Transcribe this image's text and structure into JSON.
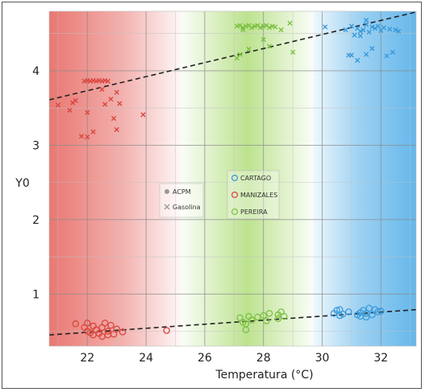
{
  "chart_data": {
    "type": "scatter",
    "xlabel": "Temperatura (°C)",
    "ylabel": "Y0",
    "xlim": [
      20.7,
      33.2
    ],
    "ylim": [
      0.3,
      4.8
    ],
    "x_ticks": [
      22,
      24,
      26,
      28,
      30,
      32
    ],
    "y_ticks": [
      1,
      2,
      3,
      4
    ],
    "grid": true,
    "colors": {
      "manizales": "#d9473f",
      "pereira": "#7cc142",
      "cartago": "#3a9ad9",
      "regression": "#222222",
      "neutral": "#999999"
    },
    "regions": [
      {
        "name": "MANIZALES",
        "x_from": 20.7,
        "x_to": 25.2,
        "color": "#e8706a"
      },
      {
        "name": "PEREIRA",
        "x_from": 25.2,
        "x_to": 29.7,
        "color": "#a6d96a"
      },
      {
        "name": "CARTAGO",
        "x_from": 29.7,
        "x_to": 33.2,
        "color": "#5cb3ea"
      }
    ],
    "legend_fuel": [
      {
        "label": "ACPM",
        "marker": "circle"
      },
      {
        "label": "Gasolina",
        "marker": "x"
      }
    ],
    "legend_city": [
      {
        "label": "CARTAGO",
        "color": "#3a9ad9"
      },
      {
        "label": "MANIZALES",
        "color": "#d9473f"
      },
      {
        "label": "PEREIRA",
        "color": "#7cc142"
      }
    ],
    "regression_lines": [
      {
        "name": "Gasolina",
        "x": [
          20.7,
          33.2
        ],
        "y": [
          3.61,
          4.79
        ]
      },
      {
        "name": "ACPM",
        "x": [
          20.7,
          33.2
        ],
        "y": [
          0.45,
          0.79
        ]
      }
    ],
    "series": [
      {
        "city": "MANIZALES",
        "fuel": "Gasolina",
        "marker": "x",
        "points": [
          [
            21.0,
            3.54
          ],
          [
            21.4,
            3.47
          ],
          [
            21.5,
            3.57
          ],
          [
            21.6,
            3.6
          ],
          [
            21.8,
            3.12
          ],
          [
            22.0,
            3.11
          ],
          [
            22.0,
            3.44
          ],
          [
            22.2,
            3.18
          ],
          [
            22.5,
            3.75
          ],
          [
            22.6,
            3.55
          ],
          [
            22.8,
            3.62
          ],
          [
            22.9,
            3.36
          ],
          [
            23.0,
            3.71
          ],
          [
            23.0,
            3.21
          ],
          [
            23.1,
            3.56
          ],
          [
            23.9,
            3.41
          ],
          [
            21.9,
            3.86
          ],
          [
            22.0,
            3.87
          ],
          [
            22.1,
            3.86
          ],
          [
            22.2,
            3.87
          ],
          [
            22.3,
            3.86
          ],
          [
            22.4,
            3.87
          ],
          [
            22.5,
            3.86
          ],
          [
            22.6,
            3.87
          ],
          [
            22.7,
            3.86
          ]
        ]
      },
      {
        "city": "MANIZALES",
        "fuel": "ACPM",
        "marker": "circle",
        "points": [
          [
            21.6,
            0.6
          ],
          [
            21.9,
            0.55
          ],
          [
            22.0,
            0.61
          ],
          [
            22.0,
            0.5
          ],
          [
            22.1,
            0.48
          ],
          [
            22.2,
            0.45
          ],
          [
            22.3,
            0.52
          ],
          [
            22.4,
            0.47
          ],
          [
            22.5,
            0.55
          ],
          [
            22.5,
            0.43
          ],
          [
            22.6,
            0.61
          ],
          [
            22.7,
            0.5
          ],
          [
            22.8,
            0.58
          ],
          [
            22.9,
            0.46
          ],
          [
            23.0,
            0.53
          ],
          [
            23.2,
            0.49
          ],
          [
            24.7,
            0.51
          ],
          [
            22.2,
            0.57
          ],
          [
            22.7,
            0.45
          ]
        ]
      },
      {
        "city": "PEREIRA",
        "fuel": "Gasolina",
        "marker": "x",
        "points": [
          [
            27.1,
            4.6
          ],
          [
            27.2,
            4.61
          ],
          [
            27.3,
            4.58
          ],
          [
            27.4,
            4.6
          ],
          [
            27.5,
            4.61
          ],
          [
            27.6,
            4.58
          ],
          [
            27.7,
            4.6
          ],
          [
            27.8,
            4.61
          ],
          [
            27.9,
            4.58
          ],
          [
            28.0,
            4.6
          ],
          [
            28.1,
            4.61
          ],
          [
            28.2,
            4.58
          ],
          [
            28.3,
            4.6
          ],
          [
            28.4,
            4.59
          ],
          [
            27.1,
            4.17
          ],
          [
            27.2,
            4.22
          ],
          [
            27.5,
            4.29
          ],
          [
            28.0,
            4.42
          ],
          [
            28.2,
            4.33
          ],
          [
            28.9,
            4.64
          ],
          [
            29.0,
            4.25
          ],
          [
            27.3,
            4.55
          ],
          [
            28.6,
            4.55
          ]
        ]
      },
      {
        "city": "PEREIRA",
        "fuel": "ACPM",
        "marker": "circle",
        "points": [
          [
            27.2,
            0.68
          ],
          [
            27.3,
            0.62
          ],
          [
            27.4,
            0.52
          ],
          [
            27.5,
            0.7
          ],
          [
            27.6,
            0.65
          ],
          [
            27.8,
            0.69
          ],
          [
            28.0,
            0.71
          ],
          [
            28.1,
            0.64
          ],
          [
            28.2,
            0.74
          ],
          [
            28.5,
            0.72
          ],
          [
            28.6,
            0.76
          ],
          [
            28.7,
            0.7
          ],
          [
            27.4,
            0.6
          ],
          [
            28.5,
            0.67
          ]
        ]
      },
      {
        "city": "CARTAGO",
        "fuel": "Gasolina",
        "marker": "x",
        "points": [
          [
            30.1,
            4.59
          ],
          [
            30.8,
            4.55
          ],
          [
            31.0,
            4.6
          ],
          [
            31.1,
            4.48
          ],
          [
            31.2,
            4.57
          ],
          [
            31.3,
            4.53
          ],
          [
            31.4,
            4.55
          ],
          [
            31.5,
            4.62
          ],
          [
            31.6,
            4.52
          ],
          [
            31.7,
            4.59
          ],
          [
            31.8,
            4.57
          ],
          [
            31.9,
            4.6
          ],
          [
            32.0,
            4.54
          ],
          [
            32.1,
            4.58
          ],
          [
            32.3,
            4.56
          ],
          [
            32.5,
            4.55
          ],
          [
            32.6,
            4.53
          ],
          [
            31.5,
            4.68
          ],
          [
            31.3,
            4.47
          ],
          [
            31.0,
            4.21
          ],
          [
            31.2,
            4.14
          ],
          [
            31.5,
            4.22
          ],
          [
            32.2,
            4.2
          ],
          [
            32.4,
            4.25
          ],
          [
            31.7,
            4.3
          ],
          [
            30.9,
            4.21
          ]
        ]
      },
      {
        "city": "CARTAGO",
        "fuel": "ACPM",
        "marker": "circle",
        "points": [
          [
            30.4,
            0.74
          ],
          [
            30.5,
            0.78
          ],
          [
            30.6,
            0.71
          ],
          [
            30.7,
            0.73
          ],
          [
            30.9,
            0.76
          ],
          [
            31.2,
            0.72
          ],
          [
            31.3,
            0.75
          ],
          [
            31.4,
            0.78
          ],
          [
            31.5,
            0.74
          ],
          [
            31.6,
            0.81
          ],
          [
            31.7,
            0.72
          ],
          [
            31.8,
            0.79
          ],
          [
            31.9,
            0.76
          ],
          [
            32.0,
            0.77
          ],
          [
            31.5,
            0.69
          ],
          [
            30.6,
            0.79
          ],
          [
            31.3,
            0.7
          ]
        ]
      }
    ]
  }
}
